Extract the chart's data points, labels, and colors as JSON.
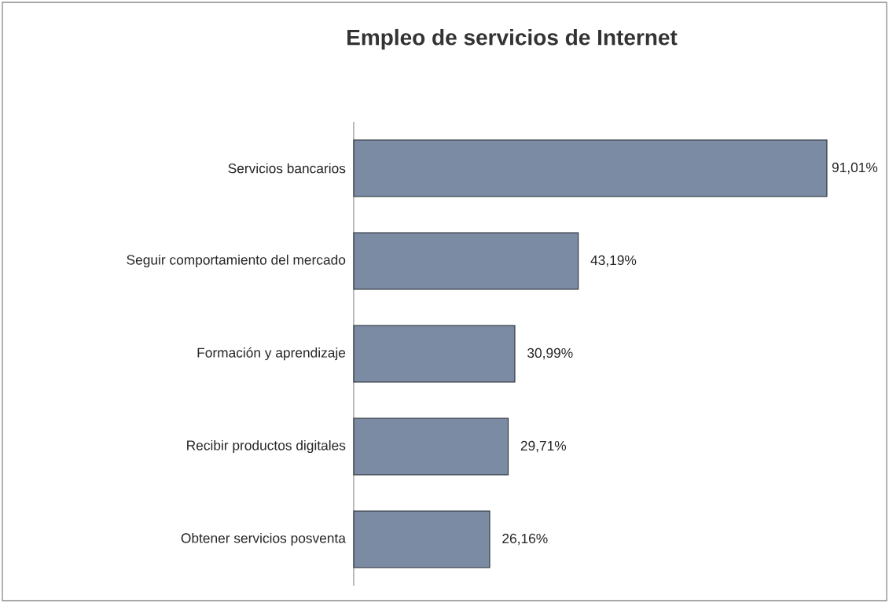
{
  "chart_data": {
    "type": "bar",
    "orientation": "horizontal",
    "title": "Empleo de servicios de Internet",
    "categories": [
      "Servicios bancarios",
      "Seguir comportamiento del mercado",
      "Formación y aprendizaje",
      "Recibir productos digitales",
      "Obtener servicios posventa"
    ],
    "values": [
      91.01,
      43.19,
      30.99,
      29.71,
      26.16
    ],
    "value_labels": [
      "91,01%",
      "43,19%",
      "30,99%",
      "29,71%",
      "26,16%"
    ],
    "color": "#7b8ba3"
  }
}
